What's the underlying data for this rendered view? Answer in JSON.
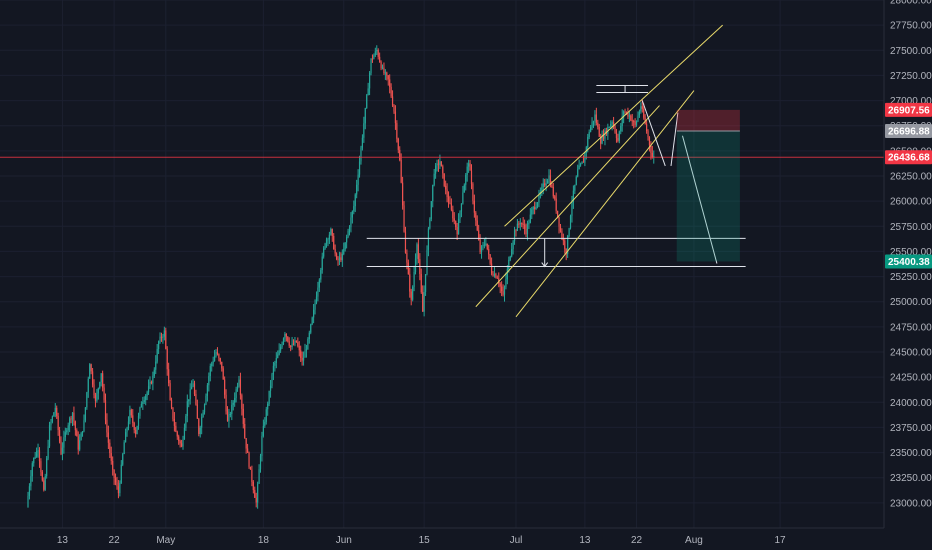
{
  "chart_data": {
    "type": "candlestick",
    "title": "",
    "ylim": [
      22750,
      28000
    ],
    "y_ticks": [
      23000,
      23250,
      23500,
      23750,
      24000,
      24250,
      24500,
      24750,
      25000,
      25250,
      25500,
      25750,
      26000,
      26250,
      26500,
      26750,
      27000,
      27250,
      27500,
      27750,
      28000
    ],
    "y_tick_labels": [
      "23000.00",
      "23250.00",
      "23500.00",
      "23750.00",
      "24000.00",
      "24250.00",
      "24500.00",
      "24750.00",
      "25000.00",
      "25250.00",
      "25500.00",
      "25750.00",
      "26000.00",
      "26250.00",
      "26500.00",
      "26750.00",
      "27000.00",
      "27250.00",
      "27500.00",
      "27750.00",
      "28000.00"
    ],
    "x_labels": [
      "13",
      "22",
      "May",
      "18",
      "Jun",
      "15",
      "Jul",
      "13",
      "22",
      "Aug",
      "17"
    ],
    "x_label_days": [
      12,
      21,
      30,
      47,
      61,
      75,
      91,
      103,
      112,
      122,
      137
    ],
    "day_range": [
      6,
      145
    ],
    "last_day": 115,
    "price_points": [
      [
        6,
        22960
      ],
      [
        7,
        23400
      ],
      [
        8,
        23550
      ],
      [
        9,
        23100
      ],
      [
        10,
        23750
      ],
      [
        11,
        23950
      ],
      [
        12,
        23500
      ],
      [
        13,
        23750
      ],
      [
        14,
        23900
      ],
      [
        15,
        23550
      ],
      [
        16,
        23800
      ],
      [
        17,
        24400
      ],
      [
        18,
        24000
      ],
      [
        19,
        24300
      ],
      [
        20,
        23700
      ],
      [
        21,
        23300
      ],
      [
        22,
        23100
      ],
      [
        23,
        23600
      ],
      [
        24,
        23900
      ],
      [
        25,
        23700
      ],
      [
        26,
        24000
      ],
      [
        27,
        24100
      ],
      [
        28,
        24250
      ],
      [
        29,
        24600
      ],
      [
        30,
        24700
      ],
      [
        31,
        24000
      ],
      [
        32,
        23700
      ],
      [
        33,
        23550
      ],
      [
        34,
        24000
      ],
      [
        35,
        24200
      ],
      [
        36,
        23700
      ],
      [
        37,
        24000
      ],
      [
        38,
        24350
      ],
      [
        39,
        24500
      ],
      [
        40,
        24350
      ],
      [
        41,
        23800
      ],
      [
        42,
        24000
      ],
      [
        43,
        24250
      ],
      [
        44,
        23650
      ],
      [
        45,
        23300
      ],
      [
        46,
        23000
      ],
      [
        47,
        23650
      ],
      [
        48,
        24000
      ],
      [
        49,
        24350
      ],
      [
        50,
        24500
      ],
      [
        51,
        24700
      ],
      [
        52,
        24550
      ],
      [
        53,
        24600
      ],
      [
        54,
        24400
      ],
      [
        55,
        24600
      ],
      [
        56,
        24900
      ],
      [
        57,
        25250
      ],
      [
        58,
        25600
      ],
      [
        59,
        25700
      ],
      [
        60,
        25400
      ],
      [
        61,
        25450
      ],
      [
        62,
        25700
      ],
      [
        63,
        25950
      ],
      [
        64,
        26400
      ],
      [
        65,
        26900
      ],
      [
        66,
        27400
      ],
      [
        67,
        27500
      ],
      [
        68,
        27300
      ],
      [
        69,
        27200
      ],
      [
        70,
        26900
      ],
      [
        71,
        26400
      ],
      [
        72,
        25500
      ],
      [
        73,
        25000
      ],
      [
        74,
        25600
      ],
      [
        75,
        24900
      ],
      [
        76,
        25700
      ],
      [
        77,
        26300
      ],
      [
        78,
        26400
      ],
      [
        79,
        26100
      ],
      [
        80,
        25900
      ],
      [
        81,
        25700
      ],
      [
        82,
        26100
      ],
      [
        83,
        26400
      ],
      [
        84,
        25900
      ],
      [
        85,
        25500
      ],
      [
        86,
        25600
      ],
      [
        87,
        25300
      ],
      [
        88,
        25250
      ],
      [
        89,
        25050
      ],
      [
        90,
        25400
      ],
      [
        91,
        25700
      ],
      [
        92,
        25800
      ],
      [
        93,
        25700
      ],
      [
        94,
        25900
      ],
      [
        95,
        26000
      ],
      [
        96,
        26150
      ],
      [
        97,
        26250
      ],
      [
        98,
        26000
      ],
      [
        99,
        25700
      ],
      [
        100,
        25500
      ],
      [
        101,
        26000
      ],
      [
        102,
        26300
      ],
      [
        103,
        26400
      ],
      [
        104,
        26700
      ],
      [
        105,
        26850
      ],
      [
        106,
        26600
      ],
      [
        107,
        26700
      ],
      [
        108,
        26800
      ],
      [
        109,
        26600
      ],
      [
        110,
        26900
      ],
      [
        111,
        26850
      ],
      [
        112,
        26750
      ],
      [
        113,
        26950
      ],
      [
        114,
        26700
      ],
      [
        115,
        26437
      ]
    ],
    "price_tags": [
      {
        "label": "26907.56",
        "value": 26907.56,
        "color": "#f23645"
      },
      {
        "label": "26696.88",
        "value": 26696.88,
        "color": "#9598a1"
      },
      {
        "label": "26436.68",
        "value": 26436.68,
        "color": "#f23645"
      },
      {
        "label": "25400.38",
        "value": 25400.38,
        "color": "#089981"
      }
    ],
    "current_price": 26436.68,
    "position": {
      "stop": 26907.56,
      "entry": 26696.88,
      "target": 25400.38,
      "from_day": 119,
      "to_day": 130
    },
    "horizontal_lines": [
      {
        "value": 25630,
        "from_day": 65,
        "to_day": 131
      },
      {
        "value": 25350,
        "from_day": 65,
        "to_day": 131
      }
    ],
    "channel_lines": [
      [
        [
          84,
          24950
        ],
        [
          116,
          26950
        ]
      ],
      [
        [
          89,
          25750
        ],
        [
          127,
          27750
        ]
      ],
      [
        [
          91,
          24850
        ],
        [
          122,
          27100
        ]
      ]
    ],
    "top_box": {
      "value": 27150,
      "level2": 27080,
      "from_day": 105,
      "to_day": 114
    },
    "colors": {
      "background": "#131722",
      "up": "#26a69a",
      "down": "#ef5350",
      "axis_text": "#b2b5be"
    }
  }
}
